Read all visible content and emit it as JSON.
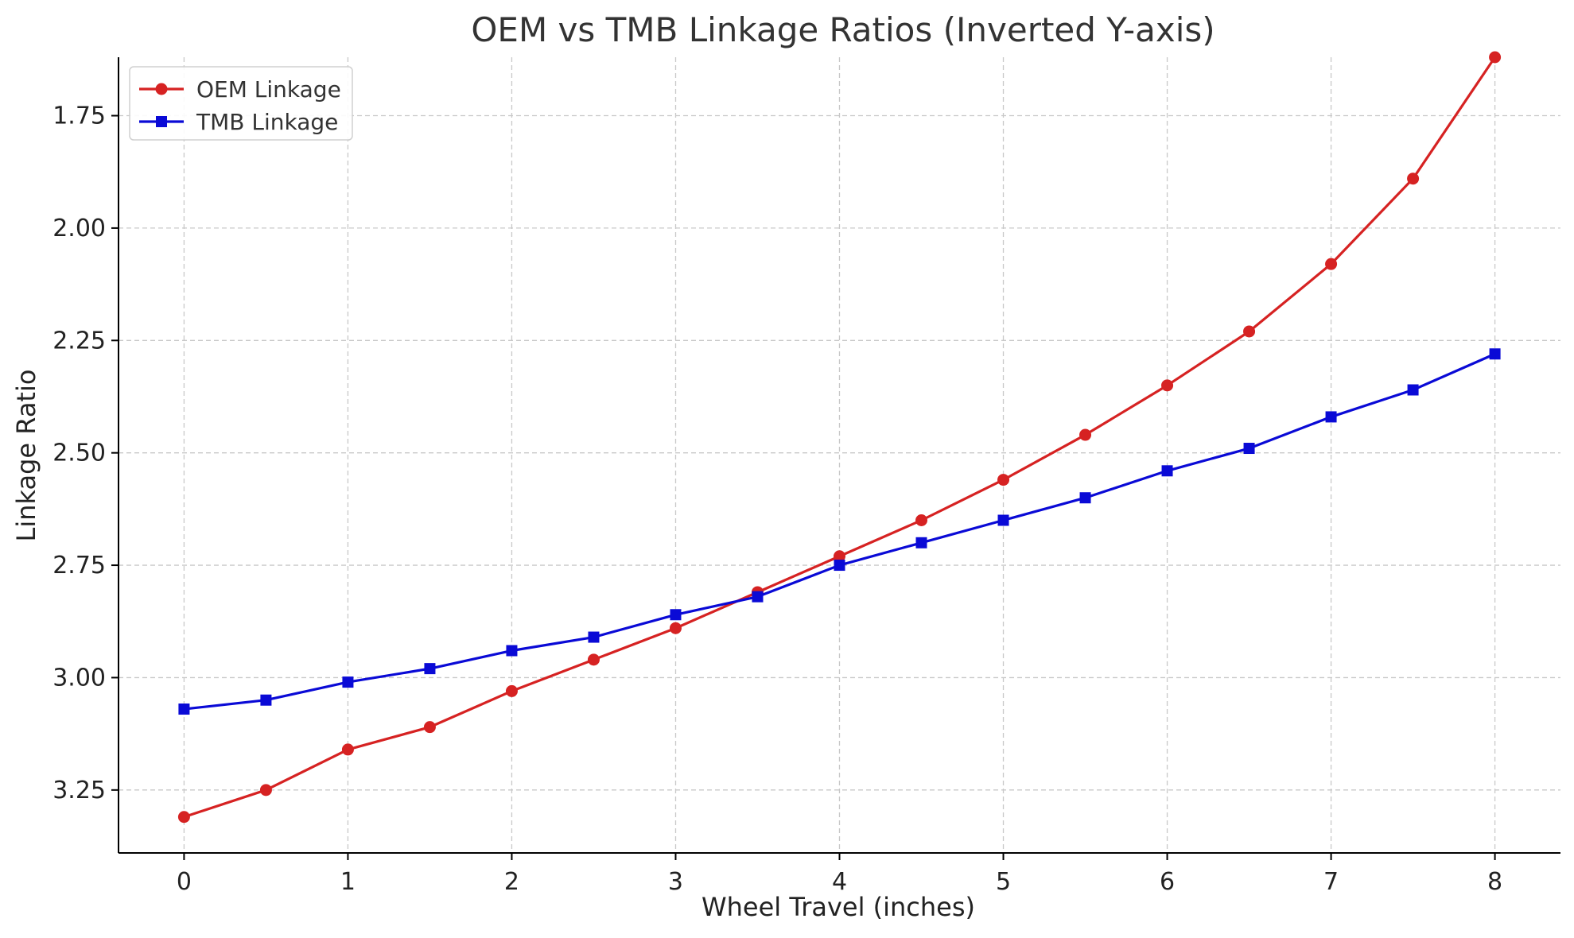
{
  "chart_data": {
    "type": "line",
    "title": "OEM vs TMB Linkage Ratios (Inverted Y-axis)",
    "xlabel": "Wheel Travel (inches)",
    "ylabel": "Linkage Ratio",
    "x": [
      0,
      0.5,
      1,
      1.5,
      2,
      2.5,
      3,
      3.5,
      4,
      4.5,
      5,
      5.5,
      6,
      6.5,
      7,
      7.5,
      8
    ],
    "x_ticks": [
      0,
      1,
      2,
      3,
      4,
      5,
      6,
      7,
      8
    ],
    "x_tick_labels": [
      "0",
      "1",
      "2",
      "3",
      "4",
      "5",
      "6",
      "7",
      "8"
    ],
    "y_ticks": [
      1.75,
      2.0,
      2.25,
      2.5,
      2.75,
      3.0,
      3.25
    ],
    "y_tick_labels": [
      "1.75",
      "2.00",
      "2.25",
      "2.50",
      "2.75",
      "3.00",
      "3.25"
    ],
    "xlim": [
      -0.4,
      8.4
    ],
    "ylim": [
      3.39,
      1.62
    ],
    "y_inverted": true,
    "grid": true,
    "legend_position": "top-left",
    "series": [
      {
        "name": "OEM Linkage",
        "color": "#d62222",
        "marker": "circle",
        "values": [
          3.31,
          3.25,
          3.16,
          3.11,
          3.03,
          2.96,
          2.89,
          2.81,
          2.73,
          2.65,
          2.56,
          2.46,
          2.35,
          2.23,
          2.08,
          1.89,
          1.62
        ]
      },
      {
        "name": "TMB Linkage",
        "color": "#0a0ad6",
        "marker": "square",
        "values": [
          3.07,
          3.05,
          3.01,
          2.98,
          2.94,
          2.91,
          2.86,
          2.82,
          2.75,
          2.7,
          2.65,
          2.6,
          2.54,
          2.49,
          2.42,
          2.36,
          2.28
        ]
      }
    ]
  }
}
